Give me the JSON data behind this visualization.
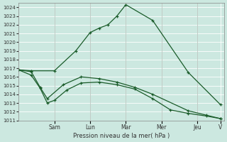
{
  "background_color": "#cce8e0",
  "grid_color": "#ffffff",
  "line_color": "#1a5c2a",
  "xlabel": "Pression niveau de la mer( hPa )",
  "ylim": [
    1011,
    1024.5
  ],
  "yticks": [
    1011,
    1012,
    1013,
    1014,
    1015,
    1016,
    1017,
    1018,
    1019,
    1020,
    1021,
    1022,
    1023,
    1024
  ],
  "xlim": [
    0,
    11.5
  ],
  "xtick_positions": [
    2.0,
    4.0,
    6.0,
    8.0,
    10.0,
    11.3
  ],
  "xtick_labels": [
    "Sam",
    "Lun",
    "Mar",
    "Mer",
    "Jeu",
    "V"
  ],
  "vline_positions": [
    2.0,
    4.0,
    6.0,
    8.0,
    10.0
  ],
  "series1_x": [
    0.0,
    0.7,
    2.0,
    3.2,
    4.0,
    4.5,
    5.0,
    5.5,
    6.0,
    7.5,
    9.5,
    11.3
  ],
  "series1_y": [
    1016.8,
    1016.7,
    1016.7,
    1019.0,
    1021.1,
    1021.6,
    1022.0,
    1023.0,
    1024.3,
    1022.5,
    1016.5,
    1012.8
  ],
  "series2_x": [
    0.0,
    0.7,
    1.2,
    1.6,
    2.0,
    2.7,
    3.5,
    4.5,
    5.5,
    6.5,
    7.5,
    8.5,
    9.5,
    10.5,
    11.3
  ],
  "series2_y": [
    1016.8,
    1016.2,
    1014.7,
    1013.0,
    1013.3,
    1014.5,
    1015.3,
    1015.4,
    1015.1,
    1014.6,
    1013.5,
    1012.2,
    1011.8,
    1011.5,
    1011.2
  ],
  "series3_x": [
    0.0,
    0.7,
    1.2,
    1.6,
    2.5,
    3.5,
    4.5,
    5.5,
    6.5,
    7.5,
    9.5,
    10.5,
    11.3
  ],
  "series3_y": [
    1016.8,
    1016.6,
    1014.8,
    1013.5,
    1015.1,
    1016.0,
    1015.8,
    1015.4,
    1014.8,
    1014.0,
    1012.1,
    1011.6,
    1011.2
  ]
}
